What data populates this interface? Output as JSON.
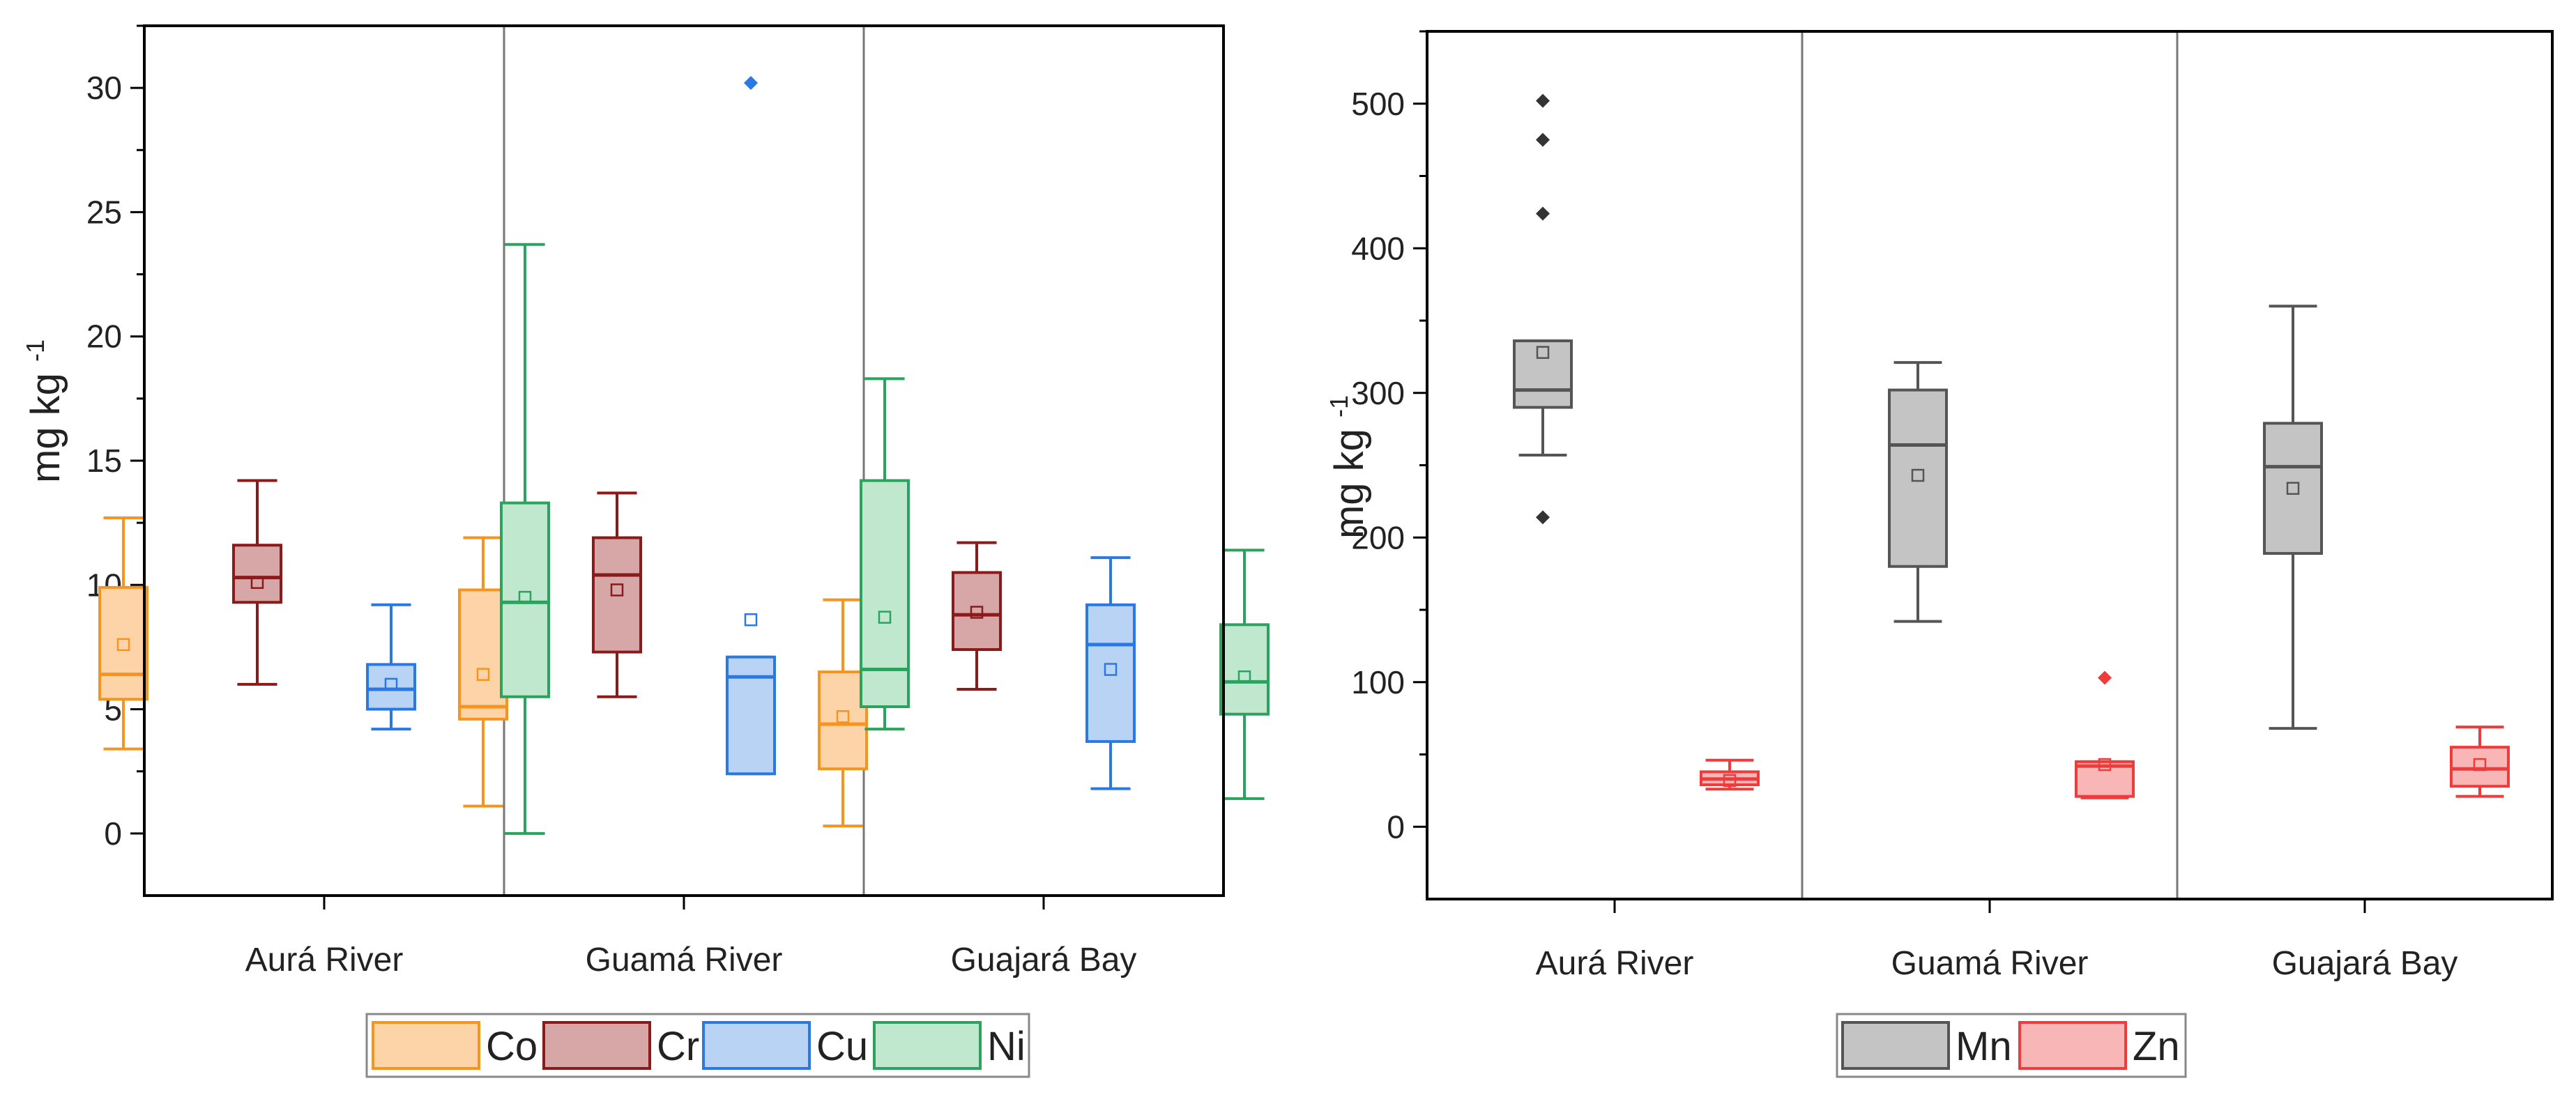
{
  "chart_data": [
    {
      "type": "box",
      "ylabel_main": "mg kg",
      "ylabel_exp": "-1",
      "ylim": [
        -2.5,
        32.5
      ],
      "yticks": [
        0,
        5,
        10,
        15,
        20,
        25,
        30
      ],
      "categories": [
        "Aurá River",
        "Guamá River",
        "Guajará Bay"
      ],
      "series": [
        {
          "name": "Co",
          "legend_label": "Co",
          "stroke": "#f7941d",
          "fill": "#fdd4a8",
          "boxes": [
            {
              "min": 3.4,
              "q1": 5.4,
              "median": 6.4,
              "q3": 9.9,
              "max": 12.7,
              "mean": 7.6,
              "outliers": []
            },
            {
              "min": 1.1,
              "q1": 4.6,
              "median": 5.1,
              "q3": 9.8,
              "max": 11.9,
              "mean": 6.4,
              "outliers": []
            },
            {
              "min": 0.3,
              "q1": 2.6,
              "median": 4.4,
              "q3": 6.5,
              "max": 9.4,
              "mean": 4.7,
              "outliers": []
            }
          ]
        },
        {
          "name": "Cr",
          "legend_label": "Cr",
          "stroke": "#8b1a1a",
          "fill": "#d7a6a6",
          "boxes": [
            {
              "min": 6.0,
              "q1": 9.3,
              "median": 10.3,
              "q3": 11.6,
              "max": 14.2,
              "mean": 10.1,
              "outliers": []
            },
            {
              "min": 5.5,
              "q1": 7.3,
              "median": 10.4,
              "q3": 11.9,
              "max": 13.7,
              "mean": 9.8,
              "outliers": []
            },
            {
              "min": 5.8,
              "q1": 7.4,
              "median": 8.8,
              "q3": 10.5,
              "max": 11.7,
              "mean": 8.9,
              "outliers": []
            }
          ]
        },
        {
          "name": "Cu",
          "legend_label": "Cu",
          "stroke": "#2a78e4",
          "fill": "#b9d3f5",
          "boxes": [
            {
              "min": 4.2,
              "q1": 5.0,
              "median": 5.8,
              "q3": 6.8,
              "max": 9.2,
              "mean": 6.0,
              "outliers": []
            },
            {
              "min": 2.4,
              "q1": 2.4,
              "median": 6.3,
              "q3": 7.1,
              "max": 7.1,
              "mean": 8.6,
              "outliers": [
                30.2
              ]
            },
            {
              "min": 1.8,
              "q1": 3.7,
              "median": 7.6,
              "q3": 9.2,
              "max": 11.1,
              "mean": 6.6,
              "outliers": []
            }
          ]
        },
        {
          "name": "Ni",
          "legend_label": "Ni",
          "stroke": "#2ba35f",
          "fill": "#bfe8cf",
          "boxes": [
            {
              "min": 0.0,
              "q1": 5.5,
              "median": 9.3,
              "q3": 13.3,
              "max": 23.7,
              "mean": 9.5,
              "outliers": []
            },
            {
              "min": 4.2,
              "q1": 5.1,
              "median": 6.6,
              "q3": 14.2,
              "max": 18.3,
              "mean": 8.7,
              "outliers": []
            },
            {
              "min": 1.4,
              "q1": 4.8,
              "median": 6.1,
              "q3": 8.4,
              "max": 11.4,
              "mean": 6.3,
              "outliers": []
            }
          ]
        }
      ]
    },
    {
      "type": "box",
      "ylabel_main": "mg kg",
      "ylabel_exp": "-1",
      "ylim": [
        -50,
        550
      ],
      "yticks": [
        0,
        100,
        200,
        300,
        400,
        500
      ],
      "categories": [
        "Aurá River",
        "Guamá River",
        "Guajará Bay"
      ],
      "series": [
        {
          "name": "Mn",
          "legend_label": "Mn",
          "stroke": "#555555",
          "fill": "#c4c4c4",
          "boxes": [
            {
              "min": 257,
              "q1": 290,
              "median": 302,
              "q3": 336,
              "max": 336,
              "mean": 328,
              "outliers": [
                214,
                424,
                475,
                502
              ]
            },
            {
              "min": 142,
              "q1": 180,
              "median": 264,
              "q3": 302,
              "max": 321,
              "mean": 243,
              "outliers": []
            },
            {
              "min": 68,
              "q1": 189,
              "median": 249,
              "q3": 279,
              "max": 360,
              "mean": 234,
              "outliers": []
            }
          ]
        },
        {
          "name": "Zn",
          "legend_label": "Zn",
          "stroke": "#ee3b3b",
          "fill": "#f9b6b6",
          "boxes": [
            {
              "min": 26,
              "q1": 29,
              "median": 33,
              "q3": 38,
              "max": 46,
              "mean": 32,
              "outliers": []
            },
            {
              "min": 20,
              "q1": 21,
              "median": 42,
              "q3": 45,
              "max": 45,
              "mean": 43,
              "outliers": [
                103
              ]
            },
            {
              "min": 21,
              "q1": 28,
              "median": 40,
              "q3": 55,
              "max": 69,
              "mean": 43,
              "outliers": []
            }
          ]
        }
      ]
    }
  ]
}
